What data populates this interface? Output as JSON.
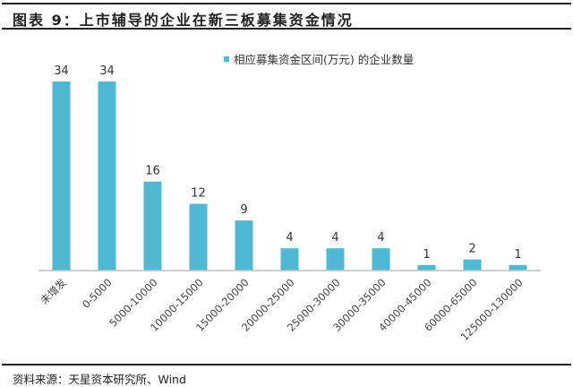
{
  "title": "图表 9：上市辅导的企业在新三板募集资金情况",
  "source": "资料来源：天星资本研究所、Wind",
  "colors": {
    "bar": "#4FB9D3",
    "axis": "#BFBFBF"
  },
  "chart_data": {
    "type": "bar",
    "title": "图表 9：上市辅导的企业在新三板募集资金情况",
    "categories": [
      "未增发",
      "0-5000",
      "5000-10000",
      "10000-15000",
      "15000-20000",
      "20000-25000",
      "25000-30000",
      "30000-35000",
      "40000-45000",
      "60000-65000",
      "125000-130000"
    ],
    "series": [
      {
        "name": "相应募集资金区间(万元) 的企业数量",
        "values": [
          34,
          34,
          16,
          12,
          9,
          4,
          4,
          4,
          1,
          2,
          1
        ]
      }
    ],
    "xlabel": "",
    "ylabel": "",
    "ylim": [
      0,
      34
    ],
    "legend": "top-right",
    "grid": false,
    "data_labels": true
  }
}
